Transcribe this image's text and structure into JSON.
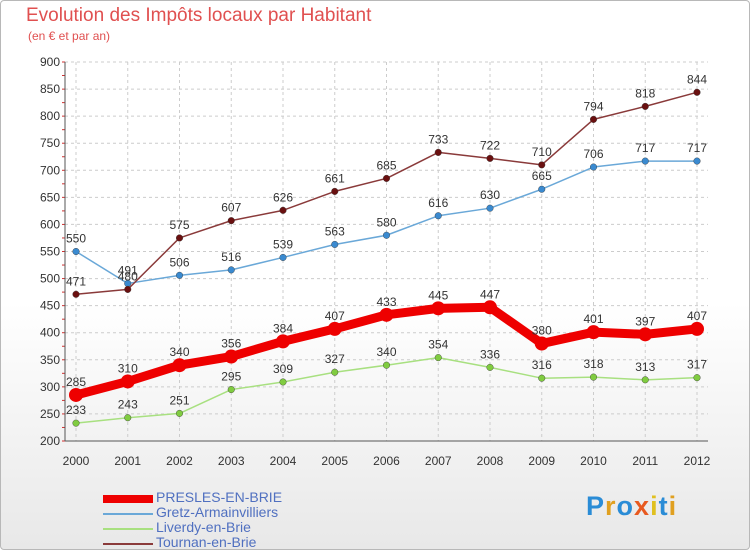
{
  "title": "Evolution des Impôts locaux par Habitant",
  "subtitle": "(en € et par an)",
  "logo": {
    "text": "Proxiti",
    "colors": [
      "#2a8cd6",
      "#e0a020",
      "#2a8cd6",
      "#e85a20",
      "#e0c020",
      "#2a8cd6",
      "#e0a020"
    ]
  },
  "chart_data": {
    "type": "line",
    "x": [
      2000,
      2001,
      2002,
      2003,
      2004,
      2005,
      2006,
      2007,
      2008,
      2009,
      2010,
      2011,
      2012
    ],
    "ylim": [
      200,
      900
    ],
    "yticks": [
      200,
      250,
      300,
      350,
      400,
      450,
      500,
      550,
      600,
      650,
      700,
      750,
      800,
      850,
      900
    ],
    "grid": true,
    "legend_position": "bottom-left",
    "series": [
      {
        "name": "PRESLES-EN-BRIE",
        "color": "#ee0000",
        "marker": "#ee0000",
        "width": 9,
        "values": [
          285,
          310,
          340,
          356,
          384,
          407,
          433,
          445,
          447,
          380,
          401,
          397,
          407
        ]
      },
      {
        "name": "Gretz-Armainvilliers",
        "color": "#6aa8d8",
        "marker": "#3a8ad0",
        "width": 1.5,
        "values": [
          550,
          491,
          506,
          516,
          539,
          563,
          580,
          616,
          630,
          665,
          706,
          717,
          717
        ]
      },
      {
        "name": "Liverdy-en-Brie",
        "color": "#a8e080",
        "marker": "#80cc40",
        "width": 1.5,
        "values": [
          233,
          243,
          251,
          295,
          309,
          327,
          340,
          354,
          336,
          316,
          318,
          313,
          317
        ]
      },
      {
        "name": "Tournan-en-Brie",
        "color": "#8a3a3a",
        "marker": "#6a1010",
        "width": 1.5,
        "values": [
          471,
          480,
          575,
          607,
          626,
          661,
          685,
          733,
          722,
          710,
          794,
          818,
          844
        ]
      }
    ]
  }
}
